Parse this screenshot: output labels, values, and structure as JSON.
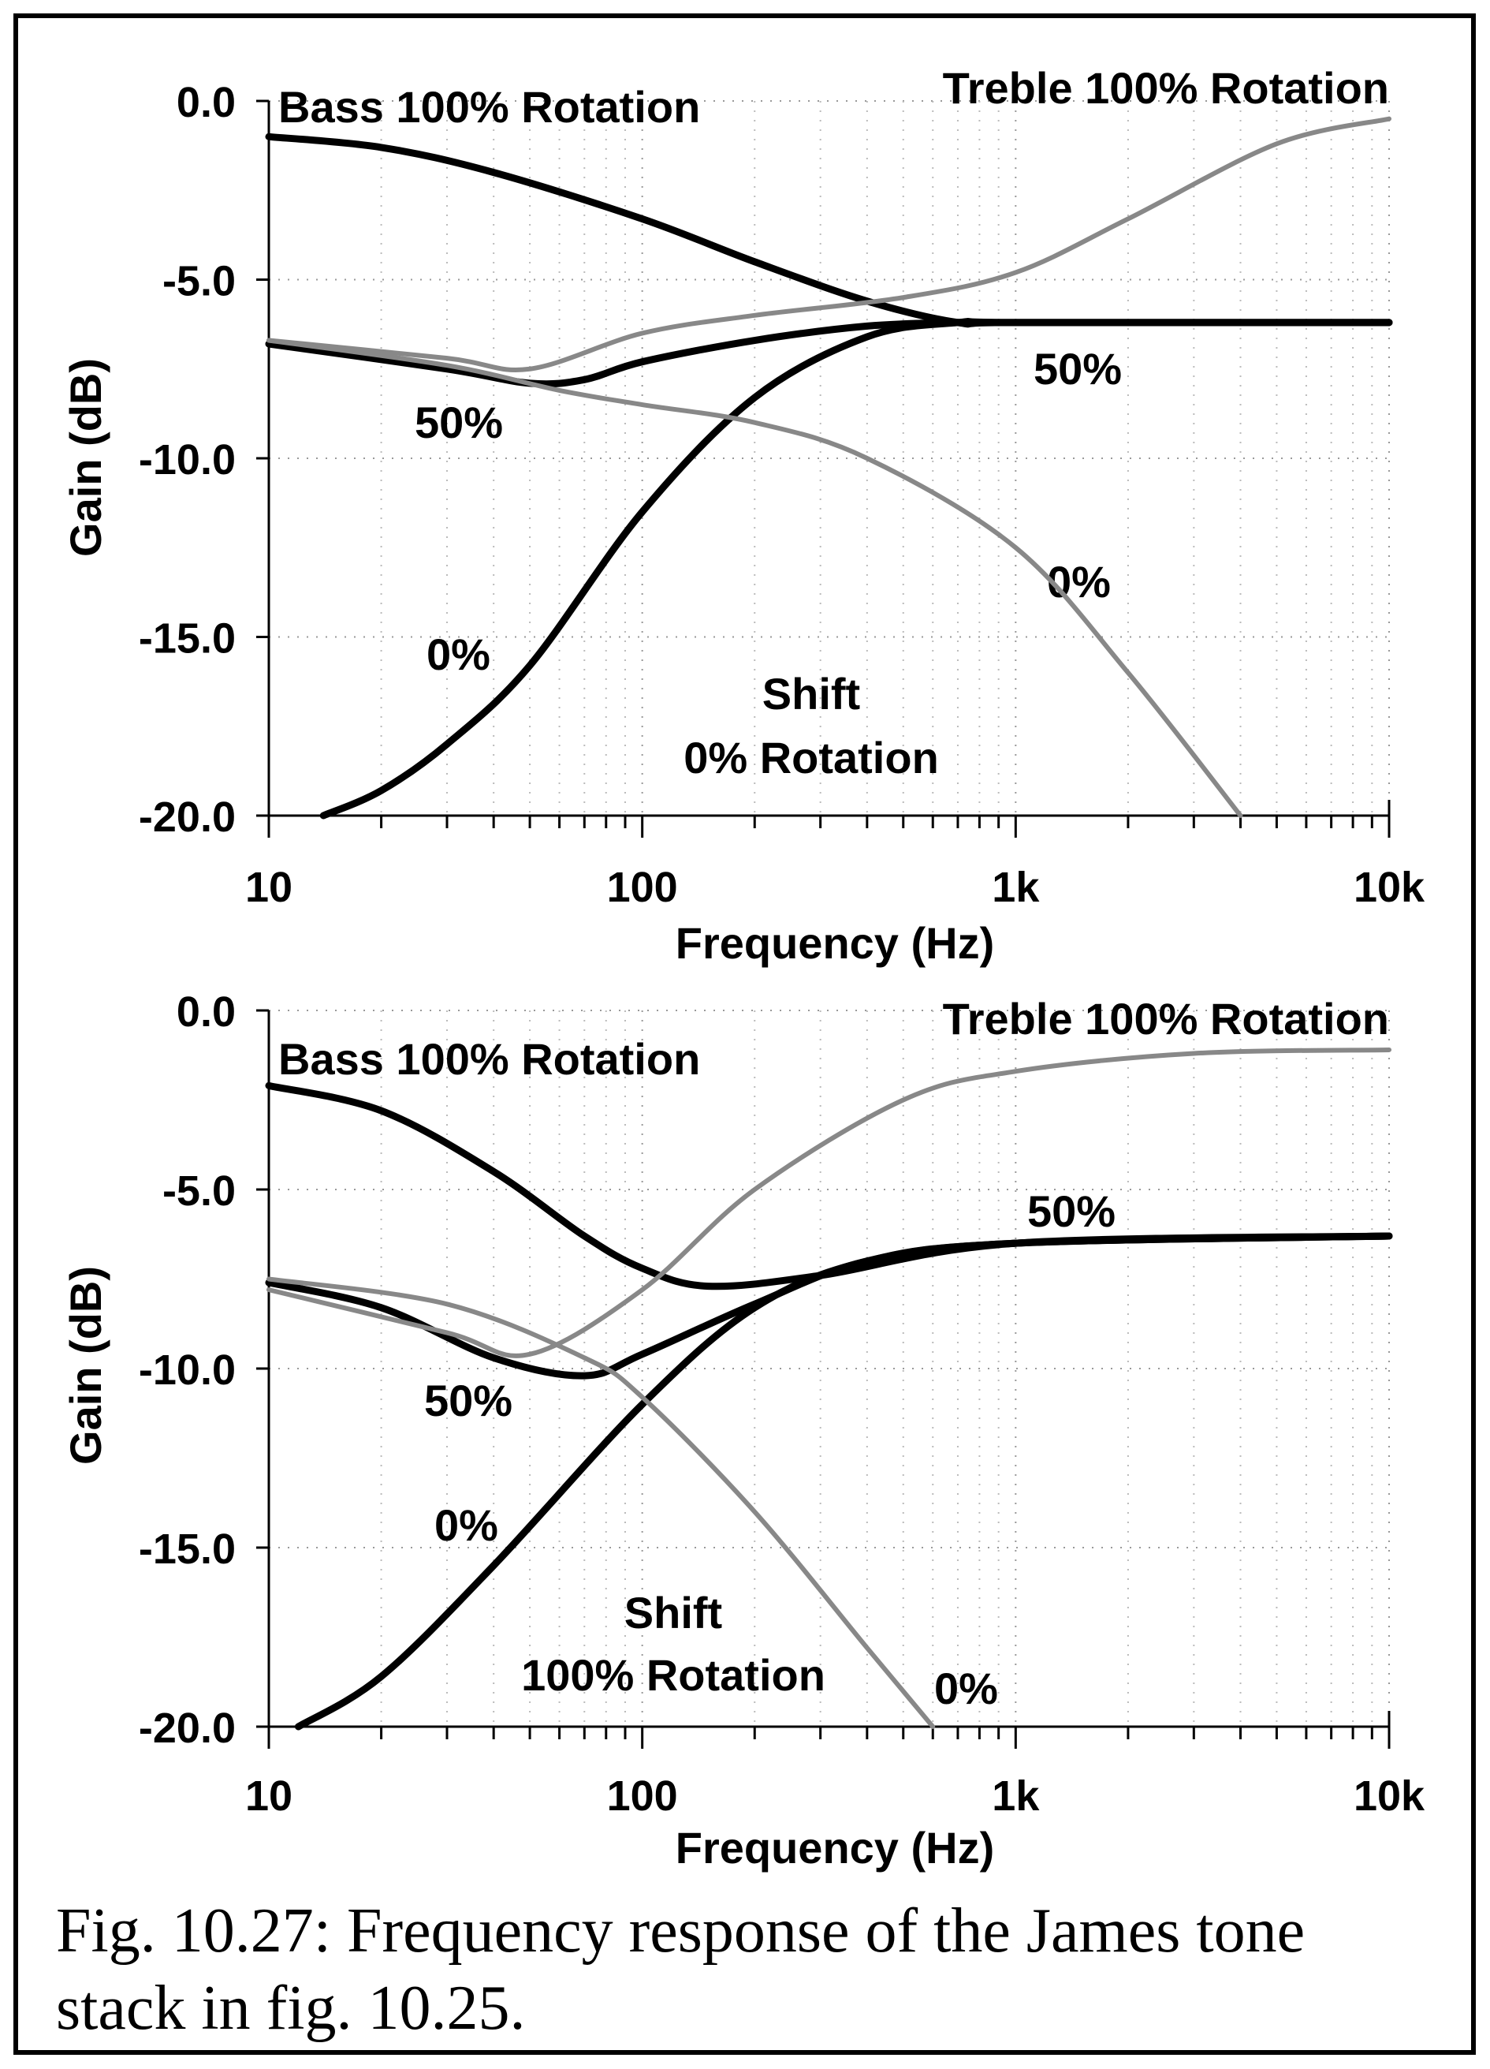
{
  "caption": {
    "line1": "Fig. 10.27: Frequency response of the James tone",
    "line2": "stack in fig. 10.25."
  },
  "chart_data": [
    {
      "type": "line",
      "xlabel": "Frequency (Hz)",
      "ylabel": "Gain (dB)",
      "xscale": "log",
      "xlim": [
        10,
        10000
      ],
      "ylim": [
        -20,
        0
      ],
      "xticks": [
        10,
        100,
        1000,
        10000
      ],
      "xtick_labels": [
        "10",
        "100",
        "1k",
        "10k"
      ],
      "yticks": [
        0,
        -5,
        -10,
        -15,
        -20
      ],
      "ytick_labels": [
        "0.0",
        "-5.0",
        "-10.0",
        "-15.0",
        "-20.0"
      ],
      "grid": true,
      "annotations": {
        "bass": "Bass 100% Rotation",
        "treble": "Treble 100% Rotation",
        "treble_50": "50%",
        "bass_50": "50%",
        "treble_0": "0%",
        "bass_0": "0%",
        "shift_1": "Shift",
        "shift_2": "0% Rotation"
      },
      "series": [
        {
          "color": "#000000",
          "x": [
            10,
            20,
            40,
            100,
            200,
            400,
            700,
            1000,
            10000
          ],
          "y": [
            -1.0,
            -1.3,
            -2.0,
            -3.3,
            -4.5,
            -5.6,
            -6.2,
            -6.2,
            -6.2
          ]
        },
        {
          "color": "#000000",
          "x": [
            10,
            30,
            50,
            70,
            100,
            200,
            400,
            700,
            1000,
            10000
          ],
          "y": [
            -6.8,
            -7.5,
            -7.9,
            -7.8,
            -7.3,
            -6.7,
            -6.3,
            -6.2,
            -6.2,
            -6.2
          ]
        },
        {
          "color": "#000000",
          "x": [
            14,
            20,
            30,
            50,
            100,
            200,
            400,
            700,
            1000,
            10000
          ],
          "y": [
            -20,
            -19.3,
            -18,
            -15.8,
            -11.5,
            -8.3,
            -6.6,
            -6.2,
            -6.2,
            -6.2
          ]
        },
        {
          "color": "#888888",
          "x": [
            10,
            30,
            50,
            100,
            200,
            500,
            1000,
            2000,
            5000,
            10000
          ],
          "y": [
            -6.7,
            -7.2,
            -7.5,
            -6.5,
            -6.0,
            -5.5,
            -4.8,
            -3.3,
            -1.2,
            -0.5
          ]
        },
        {
          "color": "#888888",
          "x": [
            10,
            30,
            60,
            100,
            200,
            400,
            1000,
            2000,
            4000
          ],
          "y": [
            -6.7,
            -7.4,
            -8.1,
            -8.5,
            -9.0,
            -10.0,
            -12.5,
            -16.0,
            -20.0
          ]
        }
      ]
    },
    {
      "type": "line",
      "xlabel": "Frequency (Hz)",
      "ylabel": "Gain (dB)",
      "xscale": "log",
      "xlim": [
        10,
        10000
      ],
      "ylim": [
        -20,
        0
      ],
      "xticks": [
        10,
        100,
        1000,
        10000
      ],
      "xtick_labels": [
        "10",
        "100",
        "1k",
        "10k"
      ],
      "yticks": [
        0,
        -5,
        -10,
        -15,
        -20
      ],
      "ytick_labels": [
        "0.0",
        "-5.0",
        "-10.0",
        "-15.0",
        "-20.0"
      ],
      "grid": true,
      "annotations": {
        "bass": "Bass 100% Rotation",
        "treble": "Treble 100% Rotation",
        "treble_50": "50%",
        "bass_50": "50%",
        "treble_0": "0%",
        "bass_0": "0%",
        "shift_1": "Shift",
        "shift_2": "100% Rotation"
      },
      "series": [
        {
          "color": "#000000",
          "x": [
            10,
            20,
            40,
            70,
            100,
            150,
            300,
            1000,
            10000
          ],
          "y": [
            -2.1,
            -2.8,
            -4.5,
            -6.3,
            -7.2,
            -7.7,
            -7.4,
            -6.5,
            -6.3
          ]
        },
        {
          "color": "#000000",
          "x": [
            10,
            20,
            40,
            70,
            100,
            200,
            400,
            1000,
            10000
          ],
          "y": [
            -7.6,
            -8.3,
            -9.7,
            -10.2,
            -9.6,
            -8.2,
            -7.0,
            -6.5,
            -6.3
          ]
        },
        {
          "color": "#000000",
          "x": [
            12,
            20,
            40,
            100,
            200,
            400,
            1000,
            10000
          ],
          "y": [
            -20,
            -18.6,
            -15.5,
            -11.0,
            -8.3,
            -7.0,
            -6.5,
            -6.3
          ]
        },
        {
          "color": "#888888",
          "x": [
            10,
            30,
            50,
            100,
            200,
            500,
            1000,
            3000,
            10000
          ],
          "y": [
            -7.8,
            -9.0,
            -9.6,
            -7.8,
            -5.0,
            -2.5,
            -1.7,
            -1.2,
            -1.1
          ]
        },
        {
          "color": "#888888",
          "x": [
            10,
            30,
            70,
            100,
            200,
            400,
            600
          ],
          "y": [
            -7.5,
            -8.2,
            -9.7,
            -10.8,
            -14.0,
            -17.8,
            -20.0
          ]
        }
      ]
    }
  ]
}
